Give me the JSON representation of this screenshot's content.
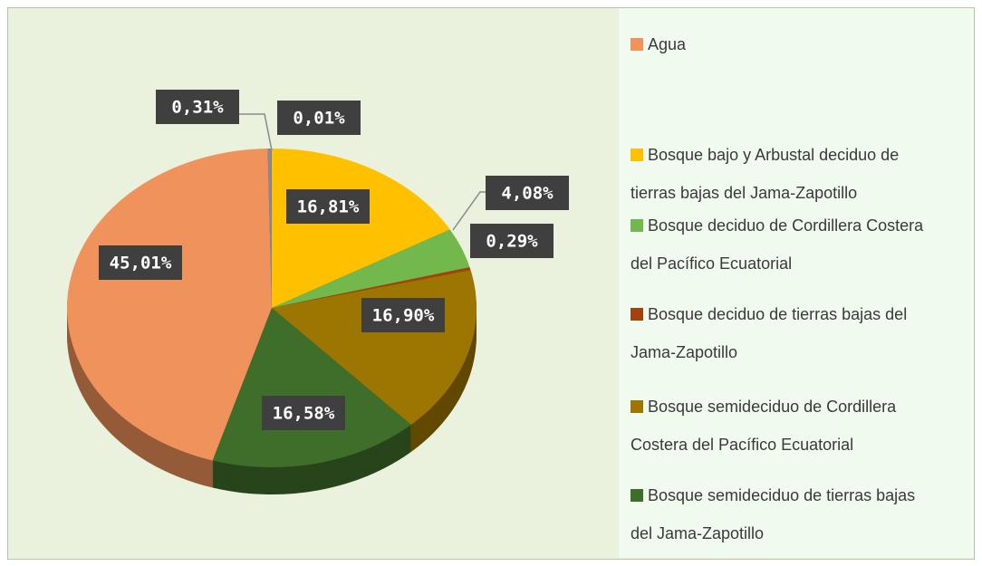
{
  "chart_data": {
    "type": "pie",
    "categories": [
      "Agua",
      null,
      null,
      "Bosque bajo y Arbustal deciduo de tierras bajas del Jama-Zapotillo",
      "Bosque deciduo de Cordillera Costera del Pacífico Ecuatorial",
      "Bosque deciduo de tierras bajas del Jama-Zapotillo",
      "Bosque semideciduo de Cordillera Costera del Pacífico Ecuatorial",
      "Bosque semideciduo de tierras bajas del Jama-Zapotillo"
    ],
    "values": [
      45.01,
      0.31,
      0.01,
      16.81,
      4.08,
      0.29,
      16.9,
      16.58
    ],
    "value_labels": [
      "45,01%",
      "0,31%",
      "0,01%",
      "16,81%",
      "4,08%",
      "0,29%",
      "16,90%",
      "16,58%"
    ],
    "colors": [
      "#f0925c",
      "#8a8a8a",
      "#4f81bd",
      "#ffc000",
      "#72b84c",
      "#a3420f",
      "#9c7600",
      "#3f6e2a"
    ]
  }
}
